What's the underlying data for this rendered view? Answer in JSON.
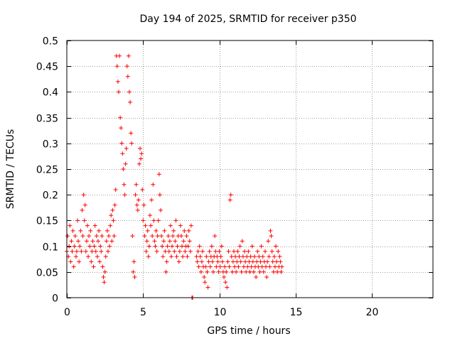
{
  "chart_data": {
    "type": "scatter",
    "title": "Day 194 of 2025, SRMTID for receiver p350",
    "xlabel": "GPS time / hours",
    "ylabel": "SRMTID / TECUs",
    "xlim": [
      0,
      24
    ],
    "ylim": [
      0,
      0.5
    ],
    "xticks": [
      0,
      5,
      10,
      15,
      20
    ],
    "xtick_labels": [
      "0",
      "5",
      "10",
      "15",
      "20"
    ],
    "yticks": [
      0,
      0.05,
      0.1,
      0.15,
      0.2,
      0.25,
      0.3,
      0.35,
      0.4,
      0.45,
      0.5
    ],
    "ytick_labels": [
      "0",
      "0.05",
      "0.1",
      "0.15",
      "0.2",
      "0.25",
      "0.3",
      "0.35",
      "0.4",
      "0.45",
      "0.5"
    ],
    "grid": true,
    "marker": "plus",
    "color": "#ff0000",
    "series": [
      {
        "name": "SRMTID",
        "points": [
          [
            0.0,
            0.09
          ],
          [
            0.05,
            0.12
          ],
          [
            0.1,
            0.08
          ],
          [
            0.15,
            0.1
          ],
          [
            0.2,
            0.14
          ],
          [
            0.25,
            0.07
          ],
          [
            0.3,
            0.11
          ],
          [
            0.35,
            0.09
          ],
          [
            0.4,
            0.13
          ],
          [
            0.45,
            0.06
          ],
          [
            0.5,
            0.1
          ],
          [
            0.55,
            0.12
          ],
          [
            0.6,
            0.08
          ],
          [
            0.65,
            0.09
          ],
          [
            0.7,
            0.15
          ],
          [
            0.75,
            0.11
          ],
          [
            0.8,
            0.07
          ],
          [
            0.85,
            0.1
          ],
          [
            0.9,
            0.13
          ],
          [
            0.95,
            0.09
          ],
          [
            1.0,
            0.17
          ],
          [
            1.05,
            0.12
          ],
          [
            1.1,
            0.2
          ],
          [
            1.15,
            0.15
          ],
          [
            1.2,
            0.18
          ],
          [
            1.25,
            0.09
          ],
          [
            1.3,
            0.11
          ],
          [
            1.35,
            0.14
          ],
          [
            1.4,
            0.08
          ],
          [
            1.45,
            0.12
          ],
          [
            1.5,
            0.1
          ],
          [
            1.55,
            0.13
          ],
          [
            1.6,
            0.07
          ],
          [
            1.65,
            0.09
          ],
          [
            1.7,
            0.11
          ],
          [
            1.75,
            0.06
          ],
          [
            1.8,
            0.1
          ],
          [
            1.85,
            0.14
          ],
          [
            1.9,
            0.09
          ],
          [
            1.95,
            0.12
          ],
          [
            2.0,
            0.08
          ],
          [
            2.05,
            0.11
          ],
          [
            2.1,
            0.13
          ],
          [
            2.15,
            0.07
          ],
          [
            2.2,
            0.1
          ],
          [
            2.25,
            0.09
          ],
          [
            2.3,
            0.12
          ],
          [
            2.35,
            0.06
          ],
          [
            2.4,
            0.04
          ],
          [
            2.45,
            0.03
          ],
          [
            2.5,
            0.05
          ],
          [
            2.55,
            0.08
          ],
          [
            2.6,
            0.11
          ],
          [
            2.65,
            0.13
          ],
          [
            2.7,
            0.09
          ],
          [
            2.75,
            0.12
          ],
          [
            2.8,
            0.1
          ],
          [
            2.85,
            0.14
          ],
          [
            2.9,
            0.16
          ],
          [
            2.95,
            0.11
          ],
          [
            3.0,
            0.17
          ],
          [
            3.05,
            0.15
          ],
          [
            3.1,
            0.12
          ],
          [
            3.15,
            0.18
          ],
          [
            3.2,
            0.21
          ],
          [
            3.25,
            0.47
          ],
          [
            3.3,
            0.45
          ],
          [
            3.35,
            0.42
          ],
          [
            3.4,
            0.4
          ],
          [
            3.45,
            0.47
          ],
          [
            3.5,
            0.35
          ],
          [
            3.55,
            0.33
          ],
          [
            3.6,
            0.3
          ],
          [
            3.65,
            0.28
          ],
          [
            3.7,
            0.25
          ],
          [
            3.75,
            0.22
          ],
          [
            3.8,
            0.2
          ],
          [
            3.85,
            0.26
          ],
          [
            3.9,
            0.29
          ],
          [
            3.95,
            0.45
          ],
          [
            4.0,
            0.43
          ],
          [
            4.05,
            0.47
          ],
          [
            4.1,
            0.4
          ],
          [
            4.15,
            0.38
          ],
          [
            4.2,
            0.32
          ],
          [
            4.25,
            0.3
          ],
          [
            4.3,
            0.12
          ],
          [
            4.35,
            0.05
          ],
          [
            4.4,
            0.07
          ],
          [
            4.45,
            0.04
          ],
          [
            4.5,
            0.2
          ],
          [
            4.55,
            0.22
          ],
          [
            4.6,
            0.18
          ],
          [
            4.65,
            0.17
          ],
          [
            4.7,
            0.19
          ],
          [
            4.75,
            0.26
          ],
          [
            4.8,
            0.29
          ],
          [
            4.85,
            0.27
          ],
          [
            4.9,
            0.28
          ],
          [
            4.95,
            0.21
          ],
          [
            5.0,
            0.15
          ],
          [
            5.05,
            0.18
          ],
          [
            5.1,
            0.12
          ],
          [
            5.15,
            0.14
          ],
          [
            5.2,
            0.09
          ],
          [
            5.25,
            0.11
          ],
          [
            5.3,
            0.13
          ],
          [
            5.35,
            0.08
          ],
          [
            5.4,
            0.1
          ],
          [
            5.45,
            0.16
          ],
          [
            5.5,
            0.14
          ],
          [
            5.55,
            0.19
          ],
          [
            5.6,
            0.12
          ],
          [
            5.65,
            0.22
          ],
          [
            5.7,
            0.15
          ],
          [
            5.75,
            0.11
          ],
          [
            5.8,
            0.1
          ],
          [
            5.85,
            0.13
          ],
          [
            5.9,
            0.09
          ],
          [
            5.95,
            0.12
          ],
          [
            6.0,
            0.15
          ],
          [
            6.05,
            0.24
          ],
          [
            6.1,
            0.2
          ],
          [
            6.15,
            0.17
          ],
          [
            6.2,
            0.12
          ],
          [
            6.25,
            0.1
          ],
          [
            6.3,
            0.08
          ],
          [
            6.35,
            0.11
          ],
          [
            6.4,
            0.13
          ],
          [
            6.45,
            0.09
          ],
          [
            6.5,
            0.05
          ],
          [
            6.55,
            0.07
          ],
          [
            6.6,
            0.1
          ],
          [
            6.65,
            0.12
          ],
          [
            6.7,
            0.09
          ],
          [
            6.75,
            0.11
          ],
          [
            6.8,
            0.14
          ],
          [
            6.85,
            0.08
          ],
          [
            6.9,
            0.1
          ],
          [
            6.95,
            0.12
          ],
          [
            7.0,
            0.13
          ],
          [
            7.05,
            0.09
          ],
          [
            7.1,
            0.11
          ],
          [
            7.15,
            0.15
          ],
          [
            7.2,
            0.08
          ],
          [
            7.25,
            0.1
          ],
          [
            7.3,
            0.12
          ],
          [
            7.35,
            0.07
          ],
          [
            7.4,
            0.09
          ],
          [
            7.45,
            0.14
          ],
          [
            7.5,
            0.12
          ],
          [
            7.55,
            0.1
          ],
          [
            7.6,
            0.08
          ],
          [
            7.65,
            0.11
          ],
          [
            7.7,
            0.13
          ],
          [
            7.75,
            0.09
          ],
          [
            7.8,
            0.1
          ],
          [
            7.85,
            0.12
          ],
          [
            7.9,
            0.08
          ],
          [
            7.95,
            0.1
          ],
          [
            8.0,
            0.13
          ],
          [
            8.05,
            0.11
          ],
          [
            8.1,
            0.09
          ],
          [
            8.15,
            0.14
          ],
          [
            8.2,
            0.0
          ],
          [
            8.25,
            0.0
          ],
          [
            8.5,
            0.08
          ],
          [
            8.55,
            0.07
          ],
          [
            8.6,
            0.09
          ],
          [
            8.65,
            0.06
          ],
          [
            8.7,
            0.1
          ],
          [
            8.75,
            0.08
          ],
          [
            8.8,
            0.05
          ],
          [
            8.85,
            0.07
          ],
          [
            8.9,
            0.09
          ],
          [
            8.95,
            0.06
          ],
          [
            9.0,
            0.04
          ],
          [
            9.05,
            0.03
          ],
          [
            9.1,
            0.06
          ],
          [
            9.15,
            0.08
          ],
          [
            9.2,
            0.05
          ],
          [
            9.25,
            0.02
          ],
          [
            9.3,
            0.07
          ],
          [
            9.35,
            0.09
          ],
          [
            9.4,
            0.06
          ],
          [
            9.45,
            0.08
          ],
          [
            9.5,
            0.1
          ],
          [
            9.55,
            0.07
          ],
          [
            9.6,
            0.05
          ],
          [
            9.65,
            0.08
          ],
          [
            9.7,
            0.12
          ],
          [
            9.75,
            0.09
          ],
          [
            9.8,
            0.06
          ],
          [
            9.85,
            0.08
          ],
          [
            9.9,
            0.07
          ],
          [
            9.95,
            0.05
          ],
          [
            10.0,
            0.09
          ],
          [
            10.05,
            0.06
          ],
          [
            10.1,
            0.08
          ],
          [
            10.15,
            0.1
          ],
          [
            10.2,
            0.07
          ],
          [
            10.25,
            0.05
          ],
          [
            10.3,
            0.04
          ],
          [
            10.35,
            0.06
          ],
          [
            10.4,
            0.03
          ],
          [
            10.45,
            0.05
          ],
          [
            10.5,
            0.02
          ],
          [
            10.55,
            0.07
          ],
          [
            10.6,
            0.09
          ],
          [
            10.65,
            0.06
          ],
          [
            10.7,
            0.19
          ],
          [
            10.75,
            0.2
          ],
          [
            10.8,
            0.08
          ],
          [
            10.85,
            0.05
          ],
          [
            10.9,
            0.07
          ],
          [
            10.95,
            0.09
          ],
          [
            11.0,
            0.06
          ],
          [
            11.05,
            0.08
          ],
          [
            11.1,
            0.05
          ],
          [
            11.15,
            0.07
          ],
          [
            11.2,
            0.09
          ],
          [
            11.25,
            0.06
          ],
          [
            11.3,
            0.08
          ],
          [
            11.35,
            0.1
          ],
          [
            11.4,
            0.07
          ],
          [
            11.45,
            0.05
          ],
          [
            11.5,
            0.11
          ],
          [
            11.55,
            0.08
          ],
          [
            11.6,
            0.06
          ],
          [
            11.65,
            0.09
          ],
          [
            11.7,
            0.07
          ],
          [
            11.75,
            0.05
          ],
          [
            11.8,
            0.08
          ],
          [
            11.85,
            0.06
          ],
          [
            11.9,
            0.09
          ],
          [
            11.95,
            0.07
          ],
          [
            12.0,
            0.05
          ],
          [
            12.05,
            0.08
          ],
          [
            12.1,
            0.06
          ],
          [
            12.15,
            0.1
          ],
          [
            12.2,
            0.07
          ],
          [
            12.25,
            0.05
          ],
          [
            12.3,
            0.08
          ],
          [
            12.35,
            0.06
          ],
          [
            12.4,
            0.04
          ],
          [
            12.45,
            0.07
          ],
          [
            12.5,
            0.09
          ],
          [
            12.55,
            0.06
          ],
          [
            12.6,
            0.08
          ],
          [
            12.65,
            0.05
          ],
          [
            12.7,
            0.07
          ],
          [
            12.75,
            0.1
          ],
          [
            12.8,
            0.06
          ],
          [
            12.85,
            0.08
          ],
          [
            12.9,
            0.05
          ],
          [
            12.95,
            0.07
          ],
          [
            13.0,
            0.09
          ],
          [
            13.05,
            0.06
          ],
          [
            13.1,
            0.04
          ],
          [
            13.15,
            0.07
          ],
          [
            13.2,
            0.11
          ],
          [
            13.25,
            0.08
          ],
          [
            13.3,
            0.06
          ],
          [
            13.35,
            0.13
          ],
          [
            13.4,
            0.12
          ],
          [
            13.45,
            0.09
          ],
          [
            13.5,
            0.07
          ],
          [
            13.55,
            0.05
          ],
          [
            13.6,
            0.08
          ],
          [
            13.65,
            0.06
          ],
          [
            13.7,
            0.1
          ],
          [
            13.75,
            0.07
          ],
          [
            13.8,
            0.05
          ],
          [
            13.85,
            0.09
          ],
          [
            13.9,
            0.06
          ],
          [
            13.95,
            0.08
          ],
          [
            14.0,
            0.07
          ],
          [
            14.05,
            0.05
          ],
          [
            14.1,
            0.06
          ]
        ]
      }
    ]
  }
}
